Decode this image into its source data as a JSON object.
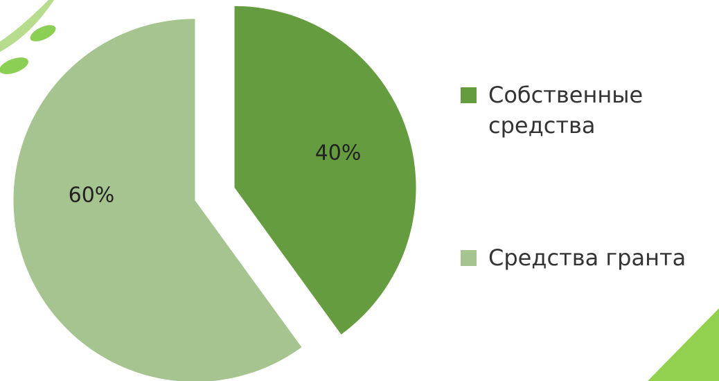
{
  "chart_data": {
    "type": "pie",
    "categories": [
      "Собственные средства",
      "Средства гранта"
    ],
    "values": [
      40,
      60
    ],
    "value_labels": [
      "40%",
      "60%"
    ],
    "colors": [
      "#659c3f",
      "#a5c490"
    ],
    "legend": "right"
  }
}
